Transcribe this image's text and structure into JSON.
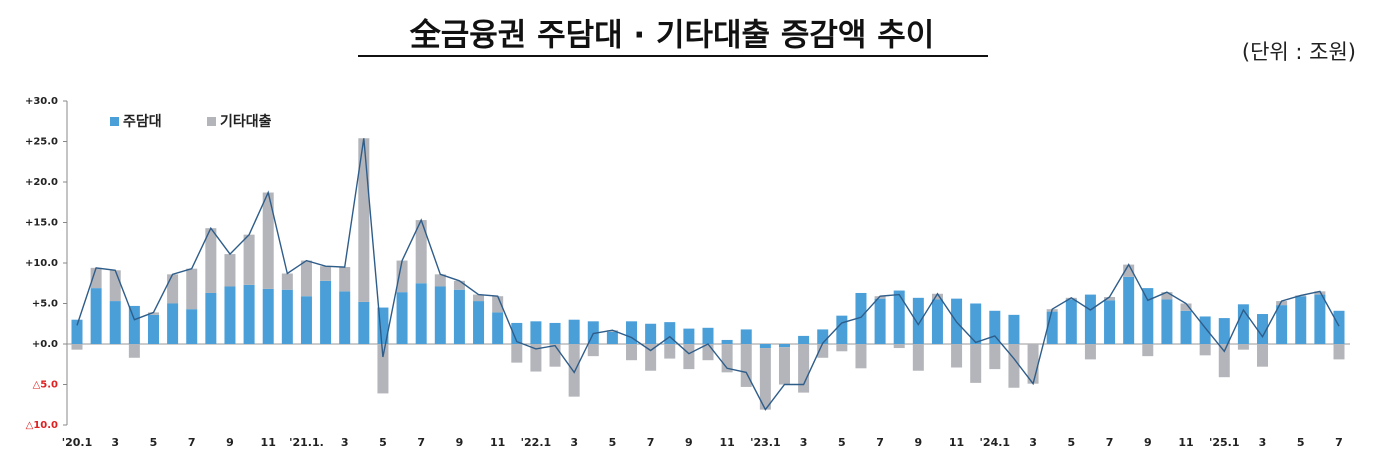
{
  "chart_data": {
    "type": "bar",
    "title": "全금융권 주담대 · 기타대출 증감액 추이",
    "subtitle": "(단위 : 조원)",
    "categories": [
      "'20.1",
      null,
      "3",
      null,
      "5",
      null,
      "7",
      null,
      "9",
      null,
      "11",
      null,
      "'21.1.",
      null,
      "3",
      null,
      "5",
      null,
      "7",
      null,
      "9",
      null,
      "11",
      null,
      "'22.1",
      null,
      "3",
      null,
      "5",
      null,
      "7",
      null,
      "9",
      null,
      "11",
      null,
      "'23.1",
      null,
      "3",
      null,
      "5",
      null,
      "7",
      null,
      "9",
      null,
      "11",
      null,
      "'24.1",
      null,
      "3",
      null,
      "5",
      null,
      "7",
      null,
      "9",
      null,
      "11",
      null,
      "'25.1",
      null,
      "3",
      null,
      "5",
      null,
      "7"
    ],
    "series": [
      {
        "name": "주담대",
        "color": "#4a9fd8",
        "values": [
          3.0,
          6.9,
          5.3,
          4.7,
          3.6,
          5.0,
          4.3,
          6.3,
          7.1,
          7.3,
          6.8,
          6.7,
          5.9,
          7.8,
          6.5,
          5.2,
          4.5,
          6.4,
          7.5,
          7.1,
          6.7,
          5.3,
          3.9,
          2.6,
          2.8,
          2.6,
          3.0,
          2.8,
          1.5,
          2.8,
          2.5,
          2.7,
          1.9,
          2.0,
          0.5,
          1.8,
          -0.5,
          -0.4,
          1.0,
          1.8,
          3.5,
          6.3,
          5.6,
          6.6,
          5.7,
          5.5,
          5.6,
          5.0,
          4.1,
          3.6,
          0.0,
          4.0,
          5.5,
          6.1,
          5.4,
          8.3,
          6.9,
          5.5,
          4.1,
          3.4,
          3.2,
          4.9,
          3.7,
          4.8,
          5.9,
          6.1,
          4.1
        ]
      },
      {
        "name": "기타대출",
        "color": "#b3b5ba",
        "values": [
          -0.7,
          2.5,
          3.8,
          -1.7,
          0.3,
          3.6,
          5.0,
          8.0,
          4.0,
          6.2,
          11.9,
          2.0,
          4.4,
          1.8,
          3.0,
          20.2,
          -6.1,
          3.9,
          7.8,
          1.5,
          1.1,
          0.8,
          2.0,
          -2.3,
          -3.4,
          -2.8,
          -6.5,
          -1.5,
          0.2,
          -2.0,
          -3.3,
          -1.8,
          -3.1,
          -2.0,
          -3.5,
          -5.3,
          -7.6,
          -4.6,
          -6.0,
          -1.7,
          -0.9,
          -3.0,
          0.3,
          -0.5,
          -3.3,
          0.7,
          -2.9,
          -4.8,
          -3.1,
          -5.4,
          -4.9,
          0.3,
          0.2,
          -1.9,
          0.4,
          1.5,
          -1.5,
          0.9,
          0.9,
          -1.4,
          -4.1,
          -0.7,
          -2.8,
          0.5,
          0.1,
          0.4,
          -1.9
        ]
      }
    ],
    "ylim": [
      -10,
      30
    ],
    "yticks": [
      {
        "value": -10,
        "label": "△10.0"
      },
      {
        "value": -5,
        "label": "△5.0"
      },
      {
        "value": 0,
        "label": "+0.0"
      },
      {
        "value": 5,
        "label": "+5.0"
      },
      {
        "value": 10,
        "label": "+10.0"
      },
      {
        "value": 15,
        "label": "+15.0"
      },
      {
        "value": 20,
        "label": "+20.0"
      },
      {
        "value": 25,
        "label": "+25.0"
      },
      {
        "value": 30,
        "label": "+30.0"
      }
    ],
    "line_color": "#2f5d8a",
    "legend": "top-left"
  }
}
